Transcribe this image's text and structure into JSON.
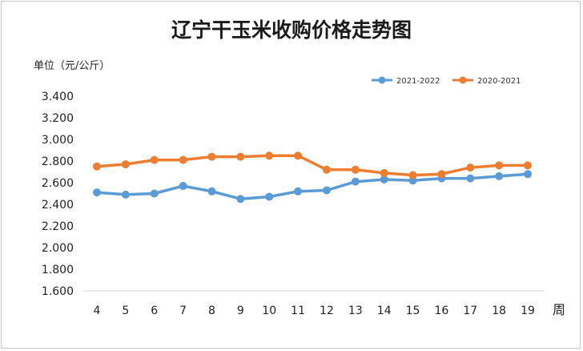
{
  "chart_data": {
    "type": "line",
    "title": "辽宁干玉米收购价格走势图",
    "ylabel": "单位（元/公斤）",
    "xlabel": "周",
    "categories": [
      "4",
      "5",
      "6",
      "7",
      "8",
      "9",
      "10",
      "11",
      "12",
      "13",
      "14",
      "15",
      "16",
      "17",
      "18",
      "19"
    ],
    "ylim": [
      1.6,
      3.4
    ],
    "yticks": [
      3.4,
      3.2,
      3.0,
      2.8,
      2.6,
      2.4,
      2.2,
      2.0,
      1.8,
      1.6
    ],
    "ytick_labels": [
      "3.400",
      "3.200",
      "3.000",
      "2.800",
      "2.600",
      "2.400",
      "2.200",
      "2.000",
      "1.800",
      "1.600"
    ],
    "grid": false,
    "legend_position": "top-right",
    "series": [
      {
        "name": "2021-2022",
        "color": "#5b9bd5",
        "values": [
          2.51,
          2.49,
          2.5,
          2.57,
          2.52,
          2.45,
          2.47,
          2.52,
          2.53,
          2.61,
          2.63,
          2.62,
          2.64,
          2.64,
          2.66,
          2.68
        ]
      },
      {
        "name": "2020-2021",
        "color": "#ed7d31",
        "values": [
          2.75,
          2.77,
          2.81,
          2.81,
          2.84,
          2.84,
          2.85,
          2.85,
          2.72,
          2.72,
          2.69,
          2.67,
          2.68,
          2.74,
          2.76,
          2.76
        ]
      }
    ]
  }
}
